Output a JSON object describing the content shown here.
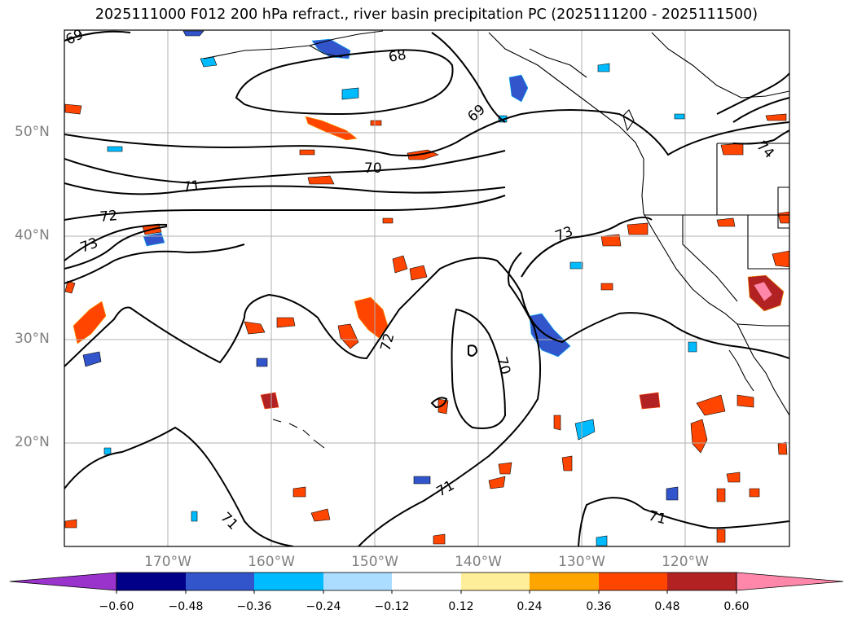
{
  "title": "2025111000 F012 200 hPa refract., river basin precipitation PC (2025111200 - 2025111500)",
  "latitude_labels": [
    "50°N",
    "40°N",
    "30°N",
    "20°N"
  ],
  "longitude_labels": [
    "170°W",
    "160°W",
    "150°W",
    "140°W",
    "130°W",
    "120°W"
  ],
  "contour_labels": [
    "69",
    "68",
    "69",
    "70",
    "71",
    "72",
    "73",
    "73",
    "72",
    "70",
    "71",
    "71",
    "71",
    "74"
  ],
  "colorbar": {
    "tick_labels": [
      "−0.60",
      "−0.48",
      "−0.36",
      "−0.24",
      "−0.12",
      "0.12",
      "0.24",
      "0.36",
      "0.48",
      "0.60"
    ],
    "colors": [
      "#9933cc",
      "#000088",
      "#3355cc",
      "#00bbff",
      "#aaddff",
      "#ffffff",
      "#ffee99",
      "#ffa500",
      "#ff4500",
      "#b22222",
      "#ff88aa"
    ]
  }
}
